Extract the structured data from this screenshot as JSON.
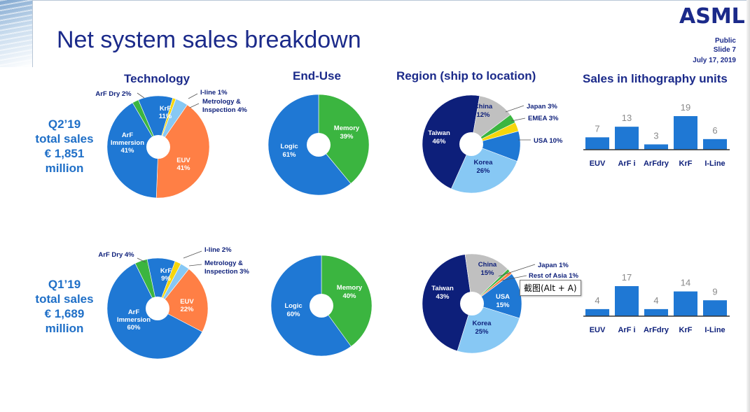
{
  "slide": {
    "title": "Net system sales breakdown",
    "logo": "ASML",
    "classification": "Public",
    "slide_number": "Slide 7",
    "date": "July 17, 2019",
    "tooltip": "截图(Alt + A)"
  },
  "columns": {
    "technology": "Technology",
    "end_use": "End-Use",
    "region": "Region (ship to location)",
    "units": "Sales in lithography units"
  },
  "quarters": {
    "q2": {
      "line1": "Q2’19",
      "line2": "total sales",
      "line3": "€ 1,851",
      "line4": "million"
    },
    "q1": {
      "line1": "Q1’19",
      "line2": "total sales",
      "line3": "€ 1,689",
      "line4": "million"
    }
  },
  "colors": {
    "navy": "#0d1f7a",
    "blue": "#1f78d4",
    "light_blue": "#87c8f4",
    "green": "#3bb540",
    "orange": "#ff7f45",
    "yellow": "#f6d60c",
    "grey": "#c0c0c0",
    "title": "#1b2a8a"
  },
  "chart_data": [
    {
      "type": "pie",
      "title": "Technology",
      "period": "Q2’19",
      "slices": [
        {
          "label": "KrF",
          "value": 11,
          "text": "11%",
          "color": "#1f78d4"
        },
        {
          "label": "I-line",
          "value": 1,
          "text": "I-line 1%",
          "color": "#f6d60c"
        },
        {
          "label": "Metrology & Inspection",
          "value": 4,
          "text": "Inspection 4%",
          "text_line1": "Metrology &",
          "color": "#87c8f4"
        },
        {
          "label": "EUV",
          "value": 41,
          "text": "41%",
          "color": "#ff7f45"
        },
        {
          "label": "ArF Immersion",
          "value": 41,
          "text": "41%",
          "text_line1": "ArF",
          "text_line2": "Immersion",
          "color": "#1f78d4"
        },
        {
          "label": "ArF Dry",
          "value": 2,
          "text": "ArF Dry 2%",
          "color": "#3bb540"
        }
      ]
    },
    {
      "type": "pie",
      "title": "End-Use",
      "period": "Q2’19",
      "slices": [
        {
          "label": "Memory",
          "value": 39,
          "text": "39%",
          "color": "#3bb540"
        },
        {
          "label": "Logic",
          "value": 61,
          "text": "61%",
          "color": "#1f78d4"
        }
      ]
    },
    {
      "type": "pie",
      "title": "Region (ship to location)",
      "period": "Q2’19",
      "slices": [
        {
          "label": "Japan",
          "value": 3,
          "text": "Japan 3%",
          "color": "#3bb540"
        },
        {
          "label": "EMEA",
          "value": 3,
          "text": "EMEA 3%",
          "color": "#f6d60c"
        },
        {
          "label": "USA",
          "value": 10,
          "text": "USA 10%",
          "color": "#1f78d4"
        },
        {
          "label": "Korea",
          "value": 26,
          "text": "26%",
          "color": "#87c8f4"
        },
        {
          "label": "Taiwan",
          "value": 46,
          "text": "46%",
          "color": "#0d1f7a"
        },
        {
          "label": "China",
          "value": 12,
          "text": "12%",
          "color": "#c0c0c0"
        }
      ]
    },
    {
      "type": "bar",
      "title": "Sales in lithography units",
      "period": "Q2’19",
      "categories": [
        "EUV",
        "ArF i",
        "ArFdry",
        "KrF",
        "I-Line"
      ],
      "values": [
        7,
        13,
        3,
        19,
        6
      ],
      "ylim": [
        0,
        19
      ]
    },
    {
      "type": "pie",
      "title": "Technology",
      "period": "Q1’19",
      "slices": [
        {
          "label": "KrF",
          "value": 9,
          "text": "9%",
          "color": "#1f78d4"
        },
        {
          "label": "I-line",
          "value": 2,
          "text": "I-line 2%",
          "color": "#f6d60c"
        },
        {
          "label": "Metrology & Inspection",
          "value": 3,
          "text": "Inspection 3%",
          "text_line1": "Metrology &",
          "color": "#87c8f4"
        },
        {
          "label": "EUV",
          "value": 22,
          "text": "22%",
          "color": "#ff7f45"
        },
        {
          "label": "ArF Immersion",
          "value": 60,
          "text": "60%",
          "text_line1": "ArF",
          "text_line2": "Immersion",
          "color": "#1f78d4"
        },
        {
          "label": "ArF Dry",
          "value": 4,
          "text": "ArF Dry 4%",
          "color": "#3bb540"
        }
      ]
    },
    {
      "type": "pie",
      "title": "End-Use",
      "period": "Q1’19",
      "slices": [
        {
          "label": "Memory",
          "value": 40,
          "text": "40%",
          "color": "#3bb540"
        },
        {
          "label": "Logic",
          "value": 60,
          "text": "60%",
          "color": "#1f78d4"
        }
      ]
    },
    {
      "type": "pie",
      "title": "Region (ship to location)",
      "period": "Q1’19",
      "slices": [
        {
          "label": "Japan",
          "value": 1,
          "text": "Japan 1%",
          "color": "#3bb540"
        },
        {
          "label": "Rest of Asia",
          "value": 1,
          "text": "Rest of Asia 1%",
          "color": "#ff7f45"
        },
        {
          "label": "USA",
          "value": 15,
          "text": "15%",
          "color": "#1f78d4"
        },
        {
          "label": "Korea",
          "value": 25,
          "text": "25%",
          "color": "#87c8f4"
        },
        {
          "label": "Taiwan",
          "value": 43,
          "text": "43%",
          "color": "#0d1f7a"
        },
        {
          "label": "China",
          "value": 15,
          "text": "15%",
          "color": "#c0c0c0"
        }
      ]
    },
    {
      "type": "bar",
      "title": "Sales in lithography units",
      "period": "Q1’19",
      "categories": [
        "EUV",
        "ArF i",
        "ArFdry",
        "KrF",
        "I-Line"
      ],
      "values": [
        4,
        17,
        4,
        14,
        9
      ],
      "ylim": [
        0,
        19
      ]
    }
  ]
}
